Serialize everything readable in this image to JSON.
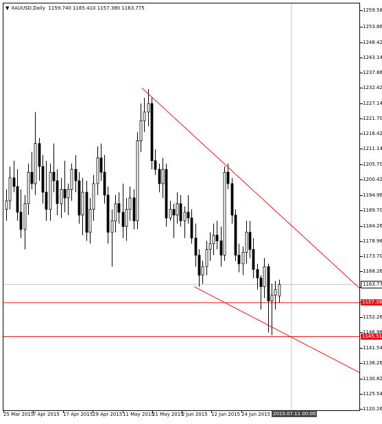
{
  "header": {
    "symbol": "XAUUSD,Daily",
    "ohlc": "1159.740 1165.410 1157.380 1163.775"
  },
  "price_axis": [
    "1259.580",
    "1253.860",
    "1248.420",
    "1243.140",
    "1237.860",
    "1232.420",
    "1227.140",
    "1221.700",
    "1216.420",
    "1211.140",
    "1205.700",
    "1200.420",
    "1194.980",
    "1189.700",
    "1184.260",
    "1178.980",
    "1173.700",
    "1168.260",
    "1162.980",
    "1157.540",
    "1152.260",
    "1146.980",
    "1141.540",
    "1136.260",
    "1130.820",
    "1125.540",
    "1120.260"
  ],
  "date_axis": [
    "25 Mar 2015",
    "7 Apr 2015",
    "17 Apr 2015",
    "29 Apr 2015",
    "11 May 2015",
    "21 May 2015",
    "2 Jun 2015",
    "12 Jun 2015",
    "24 Jun 2015"
  ],
  "current_price": "1163.775",
  "levels": [
    "1157.391",
    "1145.510"
  ],
  "crosshair_time": "2015.07.11 00:00",
  "colors": {
    "trendline": "#e8121c",
    "level_line": "#e8121c",
    "candle": "#000000",
    "grid": "#c0c0c0"
  },
  "chart_data": {
    "type": "candlestick",
    "symbol": "XAUUSD",
    "timeframe": "Daily",
    "ylim": [
      1120.26,
      1262.0
    ],
    "ohlc": [
      [
        1190,
        1197,
        1186,
        1193
      ],
      [
        1193,
        1205,
        1190,
        1201
      ],
      [
        1201,
        1207,
        1196,
        1198
      ],
      [
        1198,
        1204,
        1186,
        1189
      ],
      [
        1189,
        1197,
        1180,
        1183
      ],
      [
        1183,
        1195,
        1176,
        1192
      ],
      [
        1192,
        1206,
        1188,
        1203
      ],
      [
        1203,
        1210,
        1197,
        1199
      ],
      [
        1199,
        1224,
        1195,
        1213
      ],
      [
        1213,
        1215,
        1200,
        1205
      ],
      [
        1205,
        1209,
        1192,
        1196
      ],
      [
        1196,
        1207,
        1186,
        1190
      ],
      [
        1190,
        1206,
        1186,
        1203
      ],
      [
        1203,
        1213,
        1196,
        1200
      ],
      [
        1200,
        1204,
        1188,
        1192
      ],
      [
        1192,
        1201,
        1187,
        1197
      ],
      [
        1197,
        1207,
        1189,
        1194
      ],
      [
        1194,
        1199,
        1188,
        1197
      ],
      [
        1197,
        1206,
        1193,
        1204
      ],
      [
        1204,
        1209,
        1196,
        1200
      ],
      [
        1200,
        1203,
        1185,
        1188
      ],
      [
        1188,
        1201,
        1181,
        1196
      ],
      [
        1196,
        1200,
        1179,
        1182
      ],
      [
        1182,
        1194,
        1178,
        1190
      ],
      [
        1190,
        1202,
        1186,
        1199
      ],
      [
        1199,
        1212,
        1195,
        1208
      ],
      [
        1208,
        1213,
        1200,
        1203
      ],
      [
        1203,
        1209,
        1192,
        1195
      ],
      [
        1195,
        1198,
        1178,
        1182
      ],
      [
        1182,
        1190,
        1170,
        1186
      ],
      [
        1186,
        1195,
        1182,
        1192
      ],
      [
        1192,
        1196,
        1185,
        1189
      ],
      [
        1189,
        1199,
        1180,
        1184
      ],
      [
        1184,
        1194,
        1179,
        1190
      ],
      [
        1190,
        1198,
        1186,
        1194
      ],
      [
        1194,
        1197,
        1183,
        1186
      ],
      [
        1186,
        1217,
        1183,
        1214
      ],
      [
        1214,
        1227,
        1210,
        1221
      ],
      [
        1221,
        1229,
        1217,
        1224
      ],
      [
        1224,
        1232,
        1219,
        1227
      ],
      [
        1227,
        1229,
        1204,
        1207
      ],
      [
        1207,
        1211,
        1202,
        1204
      ],
      [
        1204,
        1206,
        1196,
        1199
      ],
      [
        1199,
        1208,
        1194,
        1204
      ],
      [
        1204,
        1206,
        1184,
        1187
      ],
      [
        1187,
        1193,
        1186,
        1190
      ],
      [
        1190,
        1192,
        1180,
        1188
      ],
      [
        1188,
        1196,
        1185,
        1192
      ],
      [
        1192,
        1195,
        1184,
        1186
      ],
      [
        1186,
        1191,
        1180,
        1189
      ],
      [
        1189,
        1195,
        1185,
        1187
      ],
      [
        1187,
        1190,
        1178,
        1180
      ],
      [
        1180,
        1185,
        1170,
        1174
      ],
      [
        1174,
        1176,
        1163,
        1167
      ],
      [
        1167,
        1172,
        1164,
        1170
      ],
      [
        1170,
        1179,
        1167,
        1176
      ],
      [
        1176,
        1182,
        1172,
        1178
      ],
      [
        1178,
        1185,
        1174,
        1181
      ],
      [
        1181,
        1186,
        1176,
        1179
      ],
      [
        1179,
        1184,
        1170,
        1174
      ],
      [
        1174,
        1205,
        1172,
        1203
      ],
      [
        1203,
        1206,
        1197,
        1199
      ],
      [
        1199,
        1201,
        1185,
        1188
      ],
      [
        1188,
        1190,
        1172,
        1174
      ],
      [
        1174,
        1178,
        1168,
        1171
      ],
      [
        1171,
        1177,
        1167,
        1175
      ],
      [
        1175,
        1186,
        1171,
        1182
      ],
      [
        1182,
        1186,
        1173,
        1176
      ],
      [
        1176,
        1180,
        1166,
        1169
      ],
      [
        1169,
        1171,
        1162,
        1166
      ],
      [
        1166,
        1167,
        1155,
        1163
      ],
      [
        1163,
        1173,
        1159,
        1170
      ],
      [
        1170,
        1171,
        1147,
        1158
      ],
      [
        1158,
        1164,
        1146,
        1160
      ],
      [
        1160,
        1165,
        1155,
        1162
      ],
      [
        1159.74,
        1165.41,
        1157.38,
        1163.775
      ]
    ],
    "trendlines": [
      {
        "from": [
          "11 May 2015",
          1232.4
        ],
        "to": [
          "2015.07.11",
          1162.5
        ]
      },
      {
        "from": [
          "2 Jun 2015",
          1163.0
        ],
        "to": [
          "2015.07.11",
          1133.0
        ]
      }
    ],
    "horizontal_levels": [
      1157.391,
      1145.51
    ]
  }
}
